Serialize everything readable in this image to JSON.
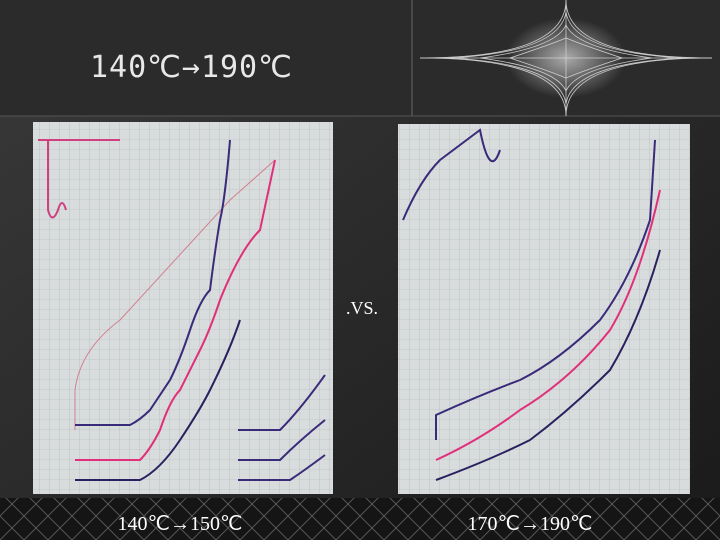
{
  "slide": {
    "title": "140℃→190℃",
    "separator": ".VS.",
    "captions": [
      "140℃→150℃",
      "170℃→190℃"
    ]
  }
}
